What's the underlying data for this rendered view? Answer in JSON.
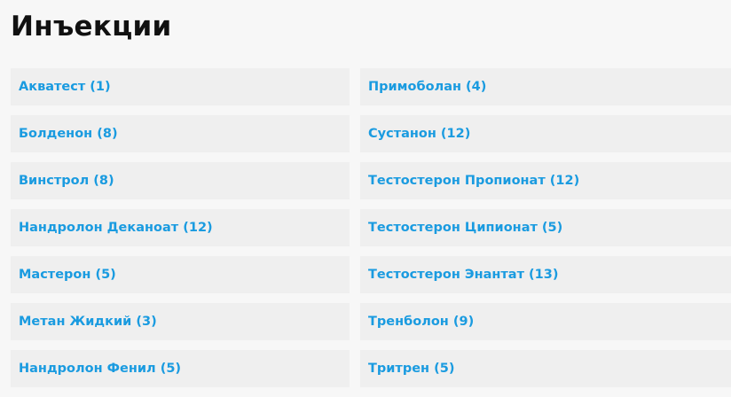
{
  "title": "Инъекции",
  "accent_color": "#1a9be0",
  "left_items": [
    {
      "label": "Акватест (1)"
    },
    {
      "label": "Болденон (8)"
    },
    {
      "label": "Винстрол (8)"
    },
    {
      "label": "Нандролон Деканоат (12)"
    },
    {
      "label": "Мастерон (5)"
    },
    {
      "label": "Метан Жидкий (3)"
    },
    {
      "label": "Нандролон Фенил (5)"
    }
  ],
  "right_items": [
    {
      "label": "Примоболан (4)"
    },
    {
      "label": "Сустанон (12)"
    },
    {
      "label": "Тестостерон Пропионат (12)"
    },
    {
      "label": "Тестостерон Ципионат (5)"
    },
    {
      "label": "Тестостерон Энантат (13)"
    },
    {
      "label": "Тренболон (9)"
    },
    {
      "label": "Тритрен (5)"
    }
  ]
}
